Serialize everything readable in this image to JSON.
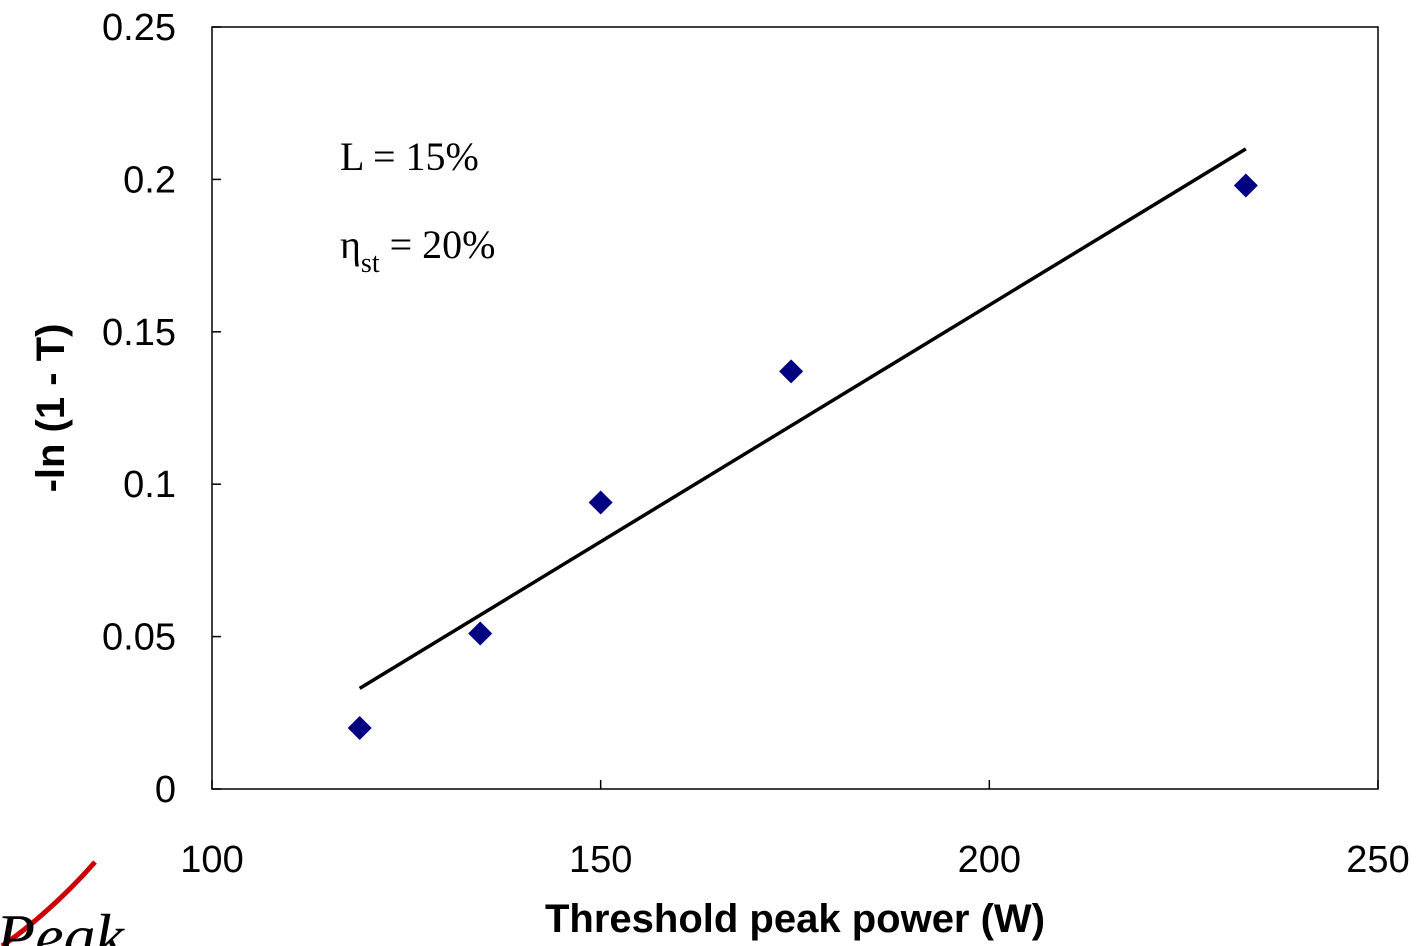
{
  "chart_data": {
    "type": "scatter",
    "xlabel": "Threshold peak power (W)",
    "ylabel": "-ln (1 - T)",
    "xlim": [
      100,
      250
    ],
    "ylim": [
      0,
      0.25
    ],
    "xticks": [
      "100",
      "150",
      "200",
      "250"
    ],
    "yticks": [
      "0",
      "0.05",
      "0.1",
      "0.15",
      "0.2",
      "0.25"
    ],
    "grid": false,
    "legend": "none",
    "series": [
      {
        "marker": "diamond",
        "color": "#000080",
        "points": [
          {
            "x": 119,
            "y": 0.02
          },
          {
            "x": 134.5,
            "y": 0.051
          },
          {
            "x": 150,
            "y": 0.094
          },
          {
            "x": 174.5,
            "y": 0.137
          },
          {
            "x": 233,
            "y": 0.198
          }
        ]
      }
    ],
    "trendline": {
      "type": "linear",
      "color": "#000000",
      "from": {
        "x": 119,
        "y": 0.033
      },
      "to": {
        "x": 233,
        "y": 0.21
      }
    },
    "annotations": {
      "line1": "L = 15%",
      "line2_symbol": "η",
      "line2_sub": "st",
      "line2_rest": " = 20%"
    }
  },
  "logo": {
    "text": "Peak",
    "accent_color": "#cc0000"
  }
}
